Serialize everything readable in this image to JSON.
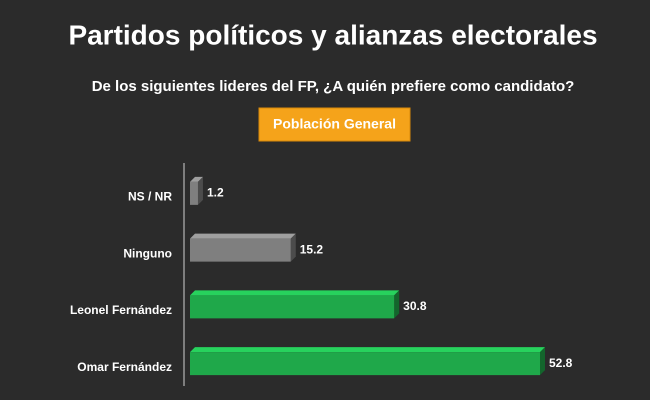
{
  "chart_data": {
    "type": "bar",
    "orientation": "horizontal",
    "title": "Partidos políticos y alianzas electorales",
    "subtitle": "De los siguientes lideres del FP, ¿A quién prefiere como candidato?",
    "button": "Población General",
    "categories": [
      "NS / NR",
      "Ninguno",
      "Leonel Fernández",
      "Omar Fernández"
    ],
    "values": [
      1.2,
      15.2,
      30.8,
      52.8
    ],
    "colors": [
      "#7f7f7f",
      "#7f7f7f",
      "#1fa84a",
      "#1fa84a"
    ]
  }
}
